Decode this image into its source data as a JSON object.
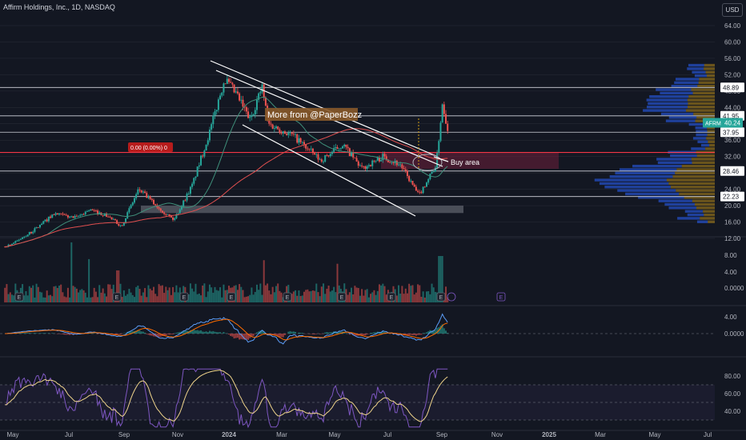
{
  "header": {
    "symbol_title": "Affirm Holdings, Inc., 1D, NASDAQ",
    "currency": "USD"
  },
  "colors": {
    "background": "#131722",
    "up": "#26a69a",
    "down": "#ef5350",
    "grid": "#2a2e39",
    "text": "#b2b5be",
    "ma_long": "#e04f4f",
    "ma_short": "#3f8f7a",
    "buy_zone": "#6d1f3a",
    "rsi": "#7e57c2",
    "rsi_signal": "#f0d58c",
    "macd": "#5b9cf6",
    "macd_signal": "#ff6d00"
  },
  "chart_data": [
    {
      "type": "candlestick",
      "name": "price",
      "title": "Affirm Holdings, Inc., 1D, NASDAQ",
      "x_ticks": [
        "May",
        "Jul",
        "Sep",
        "Nov",
        "2024",
        "Mar",
        "May",
        "Jul",
        "Sep",
        "Nov",
        "2025",
        "Mar",
        "May",
        "Jul"
      ],
      "y_ticks": [
        "64.00",
        "60.00",
        "56.00",
        "52.00",
        "48.00",
        "44.00",
        "40.00",
        "36.00",
        "32.00",
        "28.00",
        "24.00",
        "20.00",
        "16.00",
        "12.00"
      ],
      "ylim": [
        10,
        67
      ],
      "anchors": [
        [
          "2023-04-20",
          10
        ],
        [
          "2023-05-01",
          11
        ],
        [
          "2023-05-20",
          13.5
        ],
        [
          "2023-06-15",
          18
        ],
        [
          "2023-07-10",
          17
        ],
        [
          "2023-07-25",
          19
        ],
        [
          "2023-08-15",
          17.5
        ],
        [
          "2023-08-31",
          15
        ],
        [
          "2023-09-20",
          24
        ],
        [
          "2023-10-10",
          20
        ],
        [
          "2023-10-30",
          16.5
        ],
        [
          "2023-11-20",
          25
        ],
        [
          "2023-12-10",
          38
        ],
        [
          "2023-12-27",
          51
        ],
        [
          "2024-01-10",
          47
        ],
        [
          "2024-01-25",
          41
        ],
        [
          "2024-02-08",
          49
        ],
        [
          "2024-02-15",
          40
        ],
        [
          "2024-03-15",
          37
        ],
        [
          "2024-04-15",
          31
        ],
        [
          "2024-05-10",
          35
        ],
        [
          "2024-06-01",
          29
        ],
        [
          "2024-06-25",
          32
        ],
        [
          "2024-07-15",
          30
        ],
        [
          "2024-08-05",
          22.5
        ],
        [
          "2024-08-25",
          30
        ],
        [
          "2024-09-01",
          45
        ],
        [
          "2024-09-08",
          38
        ]
      ],
      "levels": [
        {
          "value": 48.89,
          "label": "48.89"
        },
        {
          "value": 41.95,
          "label": "41.95"
        },
        {
          "value": 37.95,
          "label": "37.95"
        },
        {
          "value": 28.46,
          "label": "28.46"
        },
        {
          "value": 22.23,
          "label": "22.23"
        }
      ],
      "current_price": {
        "symbol": "AFRM",
        "value": "40.24"
      },
      "annotations": {
        "banner": "More from @PaperBozz",
        "buy_zone": "Buy area",
        "measure": "0.00 (0.00%) 0",
        "earnings": "E"
      }
    },
    {
      "type": "bar",
      "name": "volume",
      "y_ticks": [
        "8.00",
        "4.00",
        "0.0000"
      ]
    },
    {
      "type": "line",
      "name": "macd",
      "y_ticks": [
        "4.00",
        "0.0000"
      ]
    },
    {
      "type": "line",
      "name": "rsi",
      "y_ticks": [
        "80.00",
        "60.00",
        "40.00"
      ],
      "ylim": [
        20,
        95
      ]
    }
  ]
}
